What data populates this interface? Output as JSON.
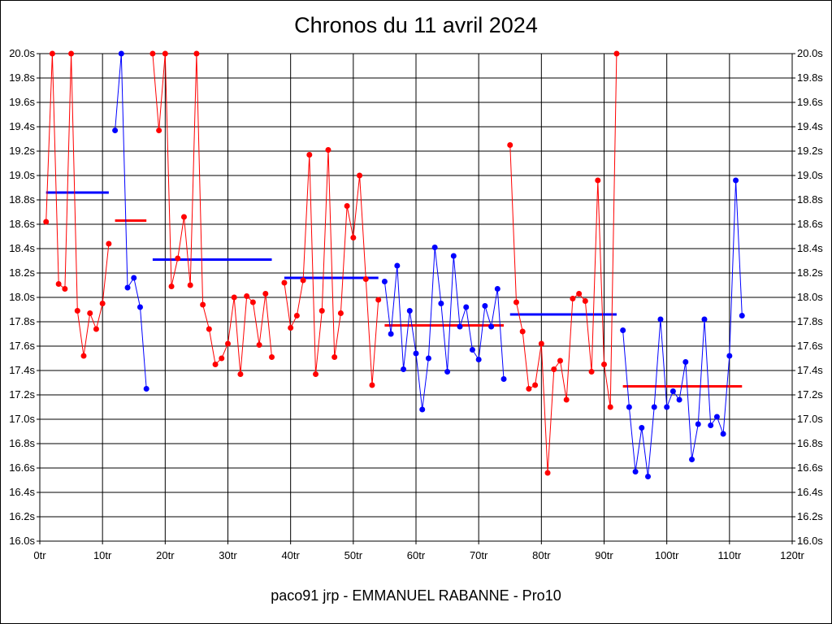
{
  "chart_data": {
    "type": "line",
    "title": "Chronos du 11 avril 2024",
    "footer": "paco91 jrp - EMMANUEL RABANNE - Pro10",
    "xlim": [
      0,
      120
    ],
    "ylim": [
      16.0,
      20.0
    ],
    "grid": true,
    "x_ticks": [
      "0tr",
      "10tr",
      "20tr",
      "30tr",
      "40tr",
      "50tr",
      "60tr",
      "70tr",
      "80tr",
      "90tr",
      "100tr",
      "110tr",
      "120tr"
    ],
    "y_ticks": [
      "16.0s",
      "16.2s",
      "16.4s",
      "16.6s",
      "16.8s",
      "17.0s",
      "17.2s",
      "17.4s",
      "17.6s",
      "17.8s",
      "18.0s",
      "18.2s",
      "18.4s",
      "18.6s",
      "18.8s",
      "19.0s",
      "19.2s",
      "19.4s",
      "19.6s",
      "19.8s",
      "20.0s"
    ],
    "colors": {
      "red": "#ff0000",
      "blue": "#0000ff",
      "grid": "#000000"
    },
    "series": [
      {
        "color": "red",
        "points": [
          [
            1,
            18.62
          ],
          [
            2,
            20.0
          ],
          [
            3,
            18.11
          ],
          [
            4,
            18.07
          ],
          [
            5,
            20.0
          ],
          [
            6,
            17.89
          ],
          [
            7,
            17.52
          ],
          [
            8,
            17.87
          ],
          [
            9,
            17.74
          ],
          [
            10,
            17.95
          ],
          [
            11,
            18.44
          ]
        ]
      },
      {
        "color": "blue",
        "points": [
          [
            12,
            19.37
          ],
          [
            13,
            20.0
          ],
          [
            14,
            18.08
          ],
          [
            15,
            18.16
          ],
          [
            16,
            17.92
          ],
          [
            17,
            17.25
          ]
        ]
      },
      {
        "color": "red",
        "points": [
          [
            18,
            20.0
          ],
          [
            19,
            19.37
          ],
          [
            20,
            20.0
          ],
          [
            21,
            18.09
          ],
          [
            22,
            18.32
          ],
          [
            23,
            18.66
          ],
          [
            24,
            18.1
          ],
          [
            25,
            20.0
          ],
          [
            26,
            17.94
          ],
          [
            27,
            17.74
          ],
          [
            28,
            17.45
          ],
          [
            29,
            17.5
          ],
          [
            30,
            17.62
          ],
          [
            31,
            18.0
          ],
          [
            32,
            17.37
          ],
          [
            33,
            18.01
          ],
          [
            34,
            17.96
          ],
          [
            35,
            17.61
          ],
          [
            36,
            18.03
          ],
          [
            37,
            17.51
          ]
        ]
      },
      {
        "color": "red",
        "points": [
          [
            39,
            18.12
          ],
          [
            40,
            17.75
          ],
          [
            41,
            17.85
          ],
          [
            42,
            18.14
          ],
          [
            43,
            19.17
          ],
          [
            44,
            17.37
          ],
          [
            45,
            17.89
          ],
          [
            46,
            19.21
          ],
          [
            47,
            17.51
          ],
          [
            48,
            17.87
          ],
          [
            49,
            18.75
          ],
          [
            50,
            18.49
          ],
          [
            51,
            19.0
          ],
          [
            52,
            18.15
          ],
          [
            53,
            17.28
          ],
          [
            54,
            17.98
          ]
        ]
      },
      {
        "color": "blue",
        "points": [
          [
            55,
            18.13
          ],
          [
            56,
            17.7
          ],
          [
            57,
            18.26
          ],
          [
            58,
            17.41
          ],
          [
            59,
            17.89
          ],
          [
            60,
            17.54
          ],
          [
            61,
            17.08
          ],
          [
            62,
            17.5
          ],
          [
            63,
            18.41
          ],
          [
            64,
            17.95
          ],
          [
            65,
            17.39
          ],
          [
            66,
            18.34
          ],
          [
            67,
            17.76
          ],
          [
            68,
            17.92
          ],
          [
            69,
            17.57
          ],
          [
            70,
            17.49
          ],
          [
            71,
            17.93
          ],
          [
            72,
            17.76
          ],
          [
            73,
            18.07
          ],
          [
            74,
            17.33
          ]
        ]
      },
      {
        "color": "red",
        "points": [
          [
            75,
            19.25
          ],
          [
            76,
            17.96
          ],
          [
            77,
            17.72
          ],
          [
            78,
            17.25
          ],
          [
            79,
            17.28
          ],
          [
            80,
            17.62
          ],
          [
            81,
            16.56
          ],
          [
            82,
            17.41
          ],
          [
            83,
            17.48
          ],
          [
            84,
            17.16
          ],
          [
            85,
            17.99
          ],
          [
            86,
            18.03
          ],
          [
            87,
            17.97
          ],
          [
            88,
            17.39
          ],
          [
            89,
            18.96
          ],
          [
            90,
            17.45
          ],
          [
            91,
            17.1
          ],
          [
            92,
            20.0
          ]
        ]
      },
      {
        "color": "blue",
        "points": [
          [
            93,
            17.73
          ],
          [
            94,
            17.1
          ],
          [
            95,
            16.57
          ],
          [
            96,
            16.93
          ],
          [
            97,
            16.53
          ],
          [
            98,
            17.1
          ],
          [
            99,
            17.82
          ],
          [
            100,
            17.1
          ],
          [
            101,
            17.23
          ],
          [
            102,
            17.16
          ],
          [
            103,
            17.47
          ],
          [
            104,
            16.67
          ],
          [
            105,
            16.96
          ],
          [
            106,
            17.82
          ],
          [
            107,
            16.95
          ],
          [
            108,
            17.02
          ],
          [
            109,
            16.88
          ],
          [
            110,
            17.52
          ],
          [
            111,
            18.96
          ],
          [
            112,
            17.85
          ]
        ]
      }
    ],
    "averages": [
      {
        "color": "blue",
        "x_range": [
          1,
          11
        ],
        "value": 18.86
      },
      {
        "color": "red",
        "x_range": [
          12,
          17
        ],
        "value": 18.63
      },
      {
        "color": "blue",
        "x_range": [
          18,
          37
        ],
        "value": 18.31
      },
      {
        "color": "blue",
        "x_range": [
          39,
          54
        ],
        "value": 18.16
      },
      {
        "color": "red",
        "x_range": [
          55,
          74
        ],
        "value": 17.77
      },
      {
        "color": "blue",
        "x_range": [
          75,
          92
        ],
        "value": 17.86
      },
      {
        "color": "red",
        "x_range": [
          93,
          112
        ],
        "value": 17.27
      }
    ]
  }
}
